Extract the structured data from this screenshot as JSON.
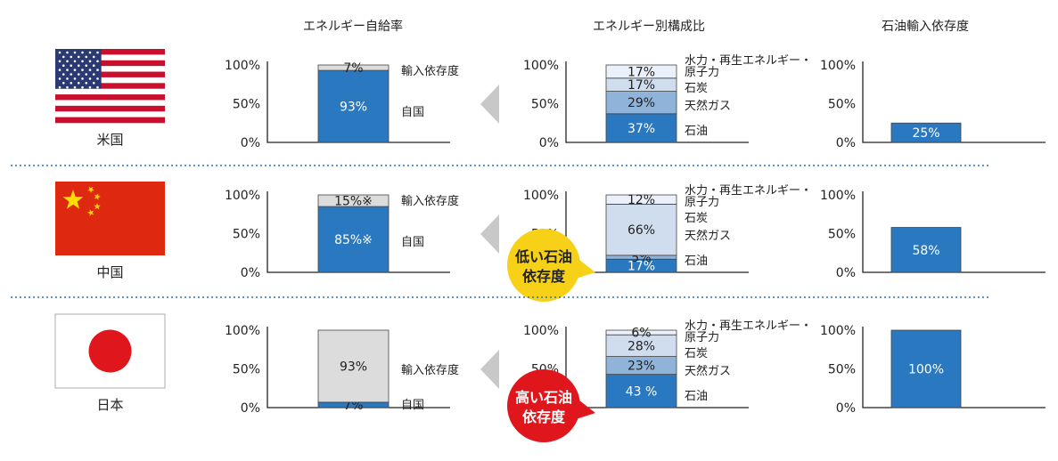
{
  "headers": {
    "self_sufficiency": "エネルギー自給率",
    "composition": "エネルギー別構成比",
    "oil_import": "石油輸入依存度"
  },
  "y_ticks": [
    "100%",
    "50%",
    "0%"
  ],
  "countries": [
    {
      "name": "米国",
      "flag": "usa-flag",
      "self_sufficiency": {
        "segments": [
          {
            "value": 93,
            "label": "93%",
            "color": "#2a79c0",
            "text_color": "#ffffff",
            "name": "自国"
          },
          {
            "value": 7,
            "label": "7%",
            "color": "#dcdcdc",
            "text_color": "#222222",
            "name": "輸入依存度"
          }
        ]
      },
      "composition": {
        "segments": [
          {
            "value": 37,
            "label": "37%",
            "color": "#2a79c0",
            "text_color": "#ffffff",
            "name": "石油"
          },
          {
            "value": 29,
            "label": "29%",
            "color": "#8fb3d9",
            "text_color": "#222222",
            "name": "天然ガス"
          },
          {
            "value": 17,
            "label": "17%",
            "color": "#cfddef",
            "text_color": "#222222",
            "name": "石炭"
          },
          {
            "value": 17,
            "label": "17%",
            "color": "#eaf1fa",
            "text_color": "#222222",
            "name": "水力・再生エネルギー・原子力"
          }
        ],
        "legend": [
          "水力・再生エネルギー・",
          "原子力",
          "石炭",
          "天然ガス",
          "石油"
        ]
      },
      "oil_import": {
        "value": 25,
        "label": "25%",
        "color": "#2a79c0"
      }
    },
    {
      "name": "中国",
      "flag": "china-flag",
      "self_sufficiency": {
        "segments": [
          {
            "value": 85,
            "label": "85%※",
            "color": "#2a79c0",
            "text_color": "#ffffff",
            "name": "自国"
          },
          {
            "value": 15,
            "label": "15%※",
            "color": "#dcdcdc",
            "text_color": "#222222",
            "name": "輸入依存度"
          }
        ]
      },
      "composition": {
        "segments": [
          {
            "value": 17,
            "label": "17%",
            "color": "#2a79c0",
            "text_color": "#ffffff",
            "name": "石油"
          },
          {
            "value": 5,
            "label": "5%",
            "color": "#8fb3d9",
            "text_color": "#222222",
            "name": "天然ガス"
          },
          {
            "value": 66,
            "label": "66%",
            "color": "#cfddef",
            "text_color": "#222222",
            "name": "石炭"
          },
          {
            "value": 12,
            "label": "12%",
            "color": "#eaf1fa",
            "text_color": "#222222",
            "name": "水力・再生エネルギー・原子力"
          }
        ],
        "legend": [
          "水力・再生エネルギー・",
          "原子力",
          "石炭",
          "天然ガス",
          "石油"
        ]
      },
      "oil_import": {
        "value": 58,
        "label": "58%",
        "color": "#2a79c0"
      },
      "badge": {
        "lines": [
          "低い石油",
          "依存度"
        ],
        "color": "#f7d117",
        "text_color": "#222222"
      }
    },
    {
      "name": "日本",
      "flag": "japan-flag",
      "self_sufficiency": {
        "segments": [
          {
            "value": 7,
            "label": "7%",
            "color": "#2a79c0",
            "text_color": "#222222",
            "name": "自国"
          },
          {
            "value": 93,
            "label": "93%",
            "color": "#dcdcdc",
            "text_color": "#222222",
            "name": "輸入依存度"
          }
        ]
      },
      "composition": {
        "segments": [
          {
            "value": 43,
            "label": "43 %",
            "color": "#2a79c0",
            "text_color": "#ffffff",
            "name": "石油"
          },
          {
            "value": 23,
            "label": "23%",
            "color": "#8fb3d9",
            "text_color": "#222222",
            "name": "天然ガス"
          },
          {
            "value": 28,
            "label": "28%",
            "color": "#cfddef",
            "text_color": "#222222",
            "name": "石炭"
          },
          {
            "value": 6,
            "label": "6%",
            "color": "#eaf1fa",
            "text_color": "#222222",
            "name": "水力・再生エネルギー・原子力"
          }
        ],
        "legend": [
          "水力・再生エネルギー・",
          "原子力",
          "石炭",
          "天然ガス",
          "石油"
        ]
      },
      "oil_import": {
        "value": 100,
        "label": "100%",
        "color": "#2a79c0"
      },
      "badge": {
        "lines": [
          "高い石油",
          "依存度"
        ],
        "color": "#e0161d",
        "text_color": "#ffffff"
      }
    }
  ],
  "chart_data": {
    "type": "bar",
    "stacked": true,
    "categories": [
      "米国",
      "中国",
      "日本"
    ],
    "ylim": [
      0,
      100
    ],
    "panels": [
      {
        "title": "エネルギー自給率",
        "series": [
          {
            "name": "自国",
            "values": [
              93,
              85,
              7
            ]
          },
          {
            "name": "輸入依存度",
            "values": [
              7,
              15,
              93
            ]
          }
        ]
      },
      {
        "title": "エネルギー別構成比",
        "series": [
          {
            "name": "石油",
            "values": [
              37,
              17,
              43
            ]
          },
          {
            "name": "天然ガス",
            "values": [
              29,
              5,
              23
            ]
          },
          {
            "name": "石炭",
            "values": [
              17,
              66,
              28
            ]
          },
          {
            "name": "水力・再生エネルギー・原子力",
            "values": [
              17,
              12,
              6
            ]
          }
        ]
      },
      {
        "title": "石油輸入依存度",
        "series": [
          {
            "name": "",
            "values": [
              25,
              58,
              100
            ]
          }
        ]
      }
    ],
    "grid": false
  }
}
